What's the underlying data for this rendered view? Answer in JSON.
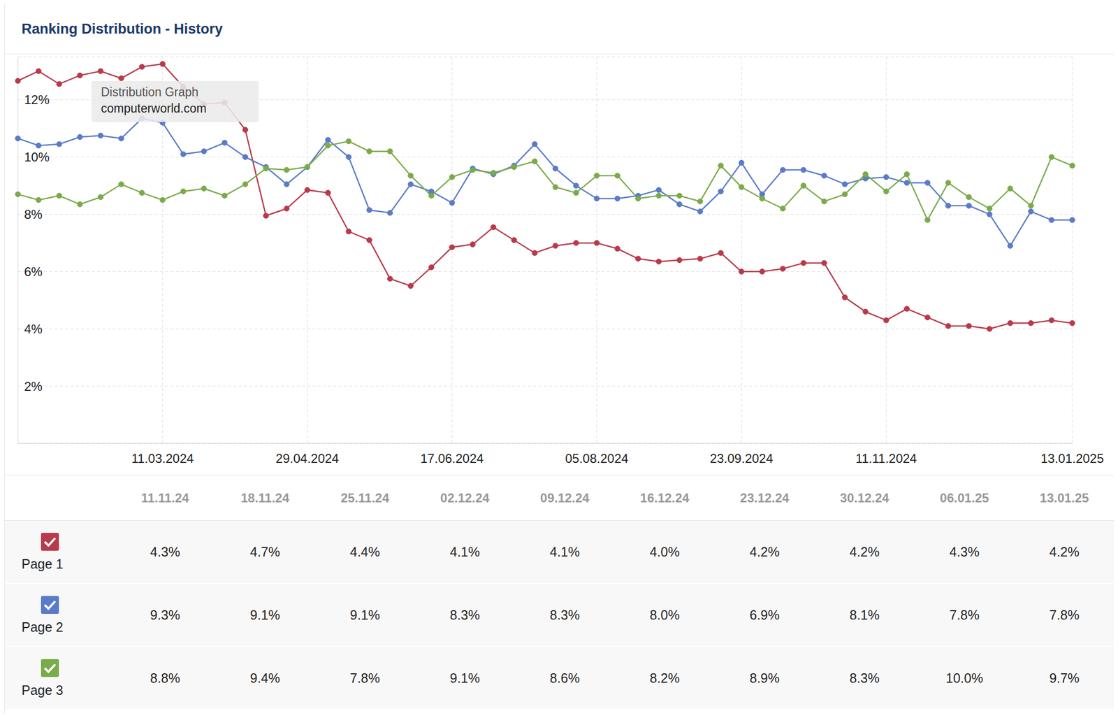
{
  "title": "Ranking Distribution - History",
  "annotation": {
    "title": "Distribution Graph",
    "text": "computerworld.com"
  },
  "chart_data": {
    "type": "line",
    "categories": [
      null,
      null,
      null,
      null,
      null,
      null,
      null,
      "11.03.2024",
      null,
      null,
      null,
      null,
      null,
      null,
      "29.04.2024",
      null,
      null,
      null,
      null,
      null,
      null,
      "17.06.2024",
      null,
      null,
      null,
      null,
      null,
      null,
      "05.08.2024",
      null,
      null,
      null,
      null,
      null,
      null,
      "23.09.2024",
      null,
      null,
      null,
      null,
      null,
      null,
      "11.11.2024",
      null,
      null,
      null,
      null,
      null,
      null,
      null,
      null,
      "13.01.2025"
    ],
    "series": [
      {
        "name": "Page 1",
        "color": "#b83a4b",
        "values": [
          12.66,
          13.0,
          12.55,
          12.85,
          13.0,
          12.75,
          13.15,
          13.25,
          12.45,
          11.85,
          11.9,
          10.95,
          7.95,
          8.2,
          8.85,
          8.75,
          7.4,
          7.1,
          5.75,
          5.5,
          6.15,
          6.85,
          6.95,
          7.55,
          7.1,
          6.65,
          6.9,
          7.0,
          7.0,
          6.8,
          6.45,
          6.35,
          6.4,
          6.45,
          6.65,
          6.0,
          6.0,
          6.1,
          6.3,
          6.3,
          5.1,
          4.6,
          4.3,
          4.7,
          4.4,
          4.1,
          4.1,
          4.0,
          4.2,
          4.2,
          4.3,
          4.2
        ]
      },
      {
        "name": "Page 2",
        "color": "#5a7bc8",
        "values": [
          10.65,
          10.4,
          10.45,
          10.7,
          10.75,
          10.65,
          11.35,
          11.2,
          10.1,
          10.2,
          10.5,
          10.0,
          9.65,
          9.05,
          9.65,
          10.6,
          10.0,
          8.15,
          8.05,
          9.05,
          8.8,
          8.4,
          9.6,
          9.4,
          9.7,
          10.45,
          9.6,
          9.0,
          8.55,
          8.55,
          8.65,
          8.85,
          8.35,
          8.1,
          8.8,
          9.8,
          8.7,
          9.55,
          9.55,
          9.35,
          9.05,
          9.25,
          9.3,
          9.1,
          9.1,
          8.3,
          8.3,
          8.0,
          6.9,
          8.1,
          7.8,
          7.8
        ]
      },
      {
        "name": "Page 3",
        "color": "#7aab4a",
        "values": [
          8.7,
          8.5,
          8.65,
          8.35,
          8.6,
          9.05,
          8.75,
          8.5,
          8.8,
          8.9,
          8.65,
          9.05,
          9.6,
          9.55,
          9.65,
          10.4,
          10.55,
          10.2,
          10.2,
          9.35,
          8.65,
          9.3,
          9.55,
          9.45,
          9.65,
          9.85,
          8.95,
          8.75,
          9.35,
          9.35,
          8.55,
          8.65,
          8.65,
          8.45,
          9.7,
          8.95,
          8.55,
          8.2,
          9.0,
          8.45,
          8.7,
          9.4,
          8.8,
          9.4,
          7.8,
          9.1,
          8.6,
          8.2,
          8.9,
          8.3,
          10.0,
          9.7
        ]
      }
    ],
    "ylim": [
      0,
      13.5
    ],
    "yticks": [
      {
        "value": 2,
        "label": "2%"
      },
      {
        "value": 4,
        "label": "4%"
      },
      {
        "value": 6,
        "label": "6%"
      },
      {
        "value": 8,
        "label": "8%"
      },
      {
        "value": 10,
        "label": "10%"
      },
      {
        "value": 12,
        "label": "12%"
      }
    ],
    "grid": true,
    "marker": "circle"
  },
  "table": {
    "columns": [
      "11.11.24",
      "18.11.24",
      "25.11.24",
      "02.12.24",
      "09.12.24",
      "16.12.24",
      "23.12.24",
      "30.12.24",
      "06.01.25",
      "13.01.25"
    ],
    "rows": [
      [
        "4.3%",
        "4.7%",
        "4.4%",
        "4.1%",
        "4.1%",
        "4.0%",
        "4.2%",
        "4.2%",
        "4.3%",
        "4.2%"
      ],
      [
        "9.3%",
        "9.1%",
        "9.1%",
        "8.3%",
        "8.3%",
        "8.0%",
        "6.9%",
        "8.1%",
        "7.8%",
        "7.8%"
      ],
      [
        "8.8%",
        "9.4%",
        "7.8%",
        "9.1%",
        "8.6%",
        "8.2%",
        "8.9%",
        "8.3%",
        "10.0%",
        "9.7%"
      ]
    ]
  }
}
